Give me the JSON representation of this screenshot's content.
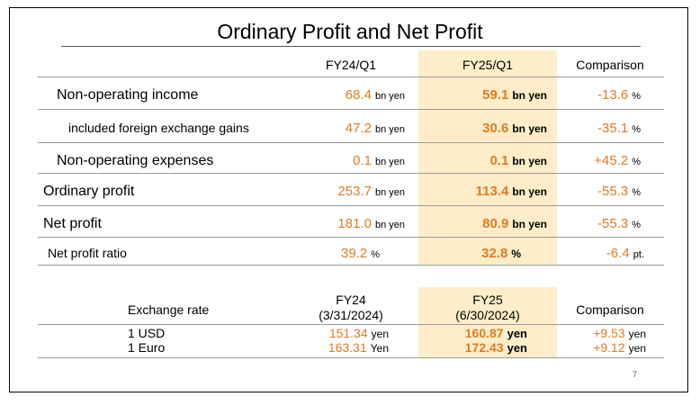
{
  "title": "Ordinary Profit and Net Profit",
  "columns": {
    "prev": "FY24/Q1",
    "curr": "FY25/Q1",
    "cmp": "Comparison"
  },
  "rows": [
    {
      "label": "Non-operating income",
      "prev": "68.4",
      "prev_unit": "bn yen",
      "curr": "59.1",
      "curr_unit": "bn yen",
      "cmp": "-13.6",
      "cmp_unit": "%"
    },
    {
      "label": "included foreign exchange gains",
      "prev": "47.2",
      "prev_unit": "bn yen",
      "curr": "30.6",
      "curr_unit": "bn yen",
      "cmp": "-35.1",
      "cmp_unit": "%"
    },
    {
      "label": "Non-operating expenses",
      "prev": "0.1",
      "prev_unit": "bn yen",
      "curr": "0.1",
      "curr_unit": "bn yen",
      "cmp": "+45.2",
      "cmp_unit": "%"
    },
    {
      "label": "Ordinary profit",
      "prev": "253.7",
      "prev_unit": "bn yen",
      "curr": "113.4",
      "curr_unit": "bn yen",
      "cmp": "-55.3",
      "cmp_unit": "%"
    },
    {
      "label": "Net profit",
      "prev": "181.0",
      "prev_unit": "bn yen",
      "curr": "80.9",
      "curr_unit": "bn yen",
      "cmp": "-55.3",
      "cmp_unit": "%"
    },
    {
      "label": "Net profit ratio",
      "prev": "39.2",
      "prev_unit": "%",
      "curr": "32.8",
      "curr_unit": "%",
      "cmp": "-6.4",
      "cmp_unit": "pt."
    }
  ],
  "fx": {
    "label": "Exchange rate",
    "prev_head": "FY24",
    "prev_date": "(3/31/2024)",
    "curr_head": "FY25",
    "curr_date": "(6/30/2024)",
    "cmp_head": "Comparison",
    "rows": [
      {
        "label": "1 USD",
        "prev": "151.34",
        "prev_unit": "yen",
        "curr": "160.87",
        "curr_unit": "yen",
        "cmp": "+9.53",
        "cmp_unit": "yen"
      },
      {
        "label": "1 Euro",
        "prev": "163.31",
        "prev_unit": "Yen",
        "curr": "172.43",
        "curr_unit": "yen",
        "cmp": "+9.12",
        "cmp_unit": "yen"
      }
    ]
  },
  "page_number": "7",
  "colors": {
    "value": "#e07b22",
    "highlight": "#fdeec9"
  }
}
